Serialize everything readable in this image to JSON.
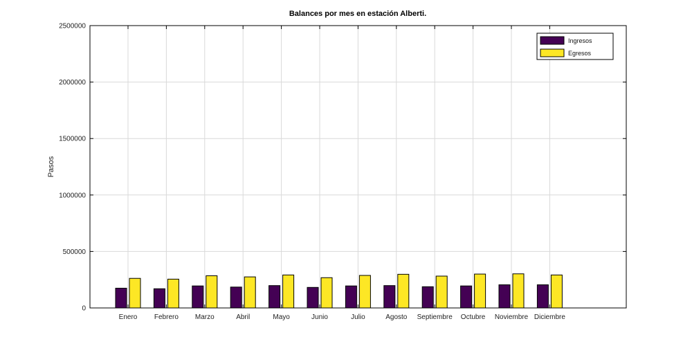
{
  "chart_data": {
    "type": "bar",
    "title": "Balances por mes en estación Alberti.",
    "xlabel": "",
    "ylabel": "Pasos",
    "ylim": [
      0,
      2500000
    ],
    "yticks": [
      0,
      500000,
      1000000,
      1500000,
      2000000,
      2500000
    ],
    "grid": true,
    "legend_position": "top-right",
    "categories": [
      "Enero",
      "Febrero",
      "Marzo",
      "Abril",
      "Mayo",
      "Junio",
      "Julio",
      "Agosto",
      "Septiembre",
      "Octubre",
      "Noviembre",
      "Diciembre"
    ],
    "series": [
      {
        "name": "Ingresos",
        "color": "#440154",
        "values": [
          175000,
          170000,
          195000,
          185000,
          198000,
          182000,
          195000,
          198000,
          188000,
          195000,
          205000,
          205000
        ]
      },
      {
        "name": "Egresos",
        "color": "#fde725",
        "values": [
          262000,
          255000,
          285000,
          275000,
          292000,
          268000,
          288000,
          298000,
          282000,
          300000,
          302000,
          292000
        ]
      }
    ]
  }
}
